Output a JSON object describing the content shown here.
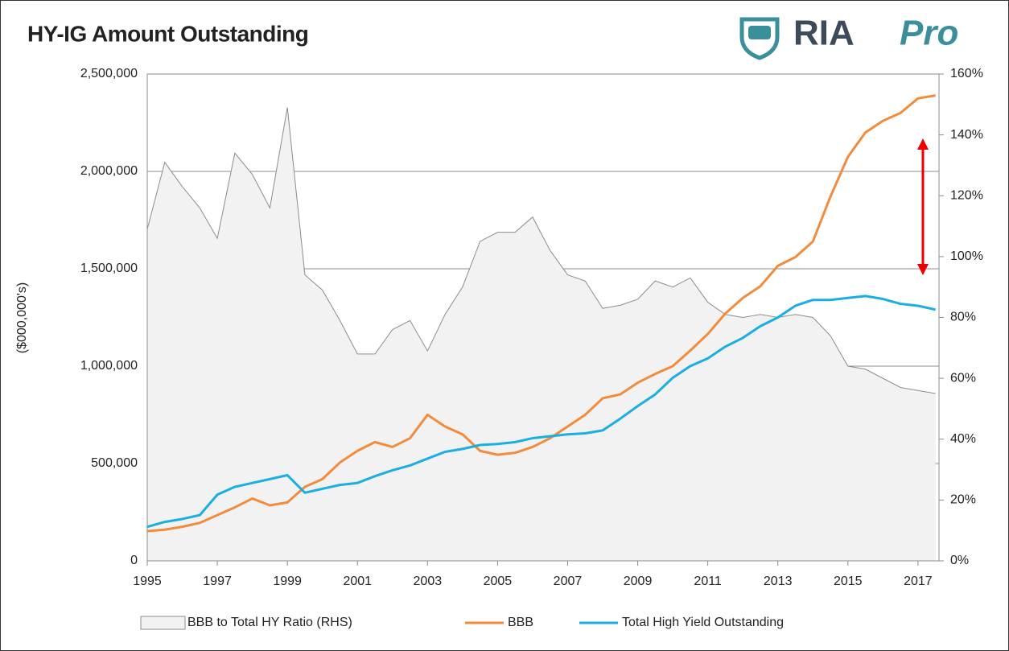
{
  "chart_data": {
    "type": "line",
    "title": "HY-IG Amount Outstanding",
    "logo": "RIA",
    "logo_suffix": "Pro",
    "y_label": "($000,000's)",
    "x": [
      1995,
      1995.5,
      1996,
      1996.5,
      1997,
      1997.5,
      1998,
      1998.5,
      1999,
      1999.5,
      2000,
      2000.5,
      2001,
      2001.5,
      2002,
      2002.5,
      2003,
      2003.5,
      2004,
      2004.5,
      2005,
      2005.5,
      2006,
      2006.5,
      2007,
      2007.5,
      2008,
      2008.5,
      2009,
      2009.5,
      2010,
      2010.5,
      2011,
      2011.5,
      2012,
      2012.5,
      2013,
      2013.5,
      2014,
      2014.5,
      2015,
      2015.5,
      2016,
      2016.5,
      2017,
      2017.5
    ],
    "series": [
      {
        "name": "BBB to Total HY Ratio (RHS)",
        "kind": "area",
        "axis": "y2",
        "color": "#f2f2f2",
        "edge": "#8c8c8c",
        "values": [
          109,
          131,
          123,
          116,
          106,
          134,
          127,
          116,
          149,
          94,
          89,
          79,
          68,
          68,
          76,
          79,
          69,
          81,
          90,
          105,
          108,
          108,
          113,
          102,
          94,
          92,
          83,
          84,
          86,
          92,
          90,
          93,
          85,
          81,
          80,
          81,
          80,
          81,
          80,
          74,
          64,
          63,
          60,
          57,
          56,
          55
        ]
      },
      {
        "name": "BBB",
        "kind": "line",
        "color": "#f28c3c",
        "values": [
          153000,
          160000,
          175000,
          195000,
          235000,
          275000,
          320000,
          285000,
          300000,
          380000,
          420000,
          505000,
          565000,
          610000,
          585000,
          630000,
          750000,
          690000,
          650000,
          565000,
          545000,
          555000,
          585000,
          630000,
          690000,
          750000,
          835000,
          855000,
          915000,
          960000,
          1000000,
          1080000,
          1165000,
          1270000,
          1350000,
          1410000,
          1515000,
          1560000,
          1640000,
          1870000,
          2075000,
          2200000,
          2260000,
          2300000,
          2375000,
          2390000
        ]
      },
      {
        "name": "Total High Yield Outstanding",
        "kind": "line",
        "color": "#1aaee3",
        "values": [
          175000,
          200000,
          215000,
          235000,
          340000,
          380000,
          400000,
          420000,
          440000,
          350000,
          370000,
          390000,
          400000,
          435000,
          465000,
          490000,
          525000,
          560000,
          575000,
          595000,
          600000,
          610000,
          630000,
          640000,
          650000,
          655000,
          670000,
          730000,
          795000,
          855000,
          940000,
          1000000,
          1040000,
          1100000,
          1145000,
          1205000,
          1250000,
          1310000,
          1340000,
          1340000,
          1350000,
          1360000,
          1345000,
          1320000,
          1310000,
          1290000
        ]
      }
    ],
    "xlim": [
      1995,
      2017.6
    ],
    "xticks": [
      1995,
      1997,
      1999,
      2001,
      2003,
      2005,
      2007,
      2009,
      2011,
      2013,
      2015,
      2017
    ],
    "ylim": [
      0,
      2500000
    ],
    "yticks": [
      0,
      {
        "value": 500000,
        "label": "500,000"
      },
      {
        "value": 1000000,
        "label": "1,000,000"
      },
      {
        "value": 1500000,
        "label": "1,500,000"
      },
      {
        "value": 2000000,
        "label": "2,000,000"
      },
      {
        "value": 2500000,
        "label": "2,500,000"
      }
    ],
    "y2lim": [
      0,
      160
    ],
    "y2ticks": [
      {
        "value": 0,
        "label": "0%"
      },
      {
        "value": 20,
        "label": "20%"
      },
      {
        "value": 40,
        "label": "40%"
      },
      {
        "value": 60,
        "label": "60%"
      },
      {
        "value": 80,
        "label": "80%"
      },
      {
        "value": 100,
        "label": "100%"
      },
      {
        "value": 120,
        "label": "120%"
      },
      {
        "value": 140,
        "label": "140%"
      },
      {
        "value": 160,
        "label": "160%"
      }
    ],
    "grid": true,
    "legend": "bottom"
  }
}
